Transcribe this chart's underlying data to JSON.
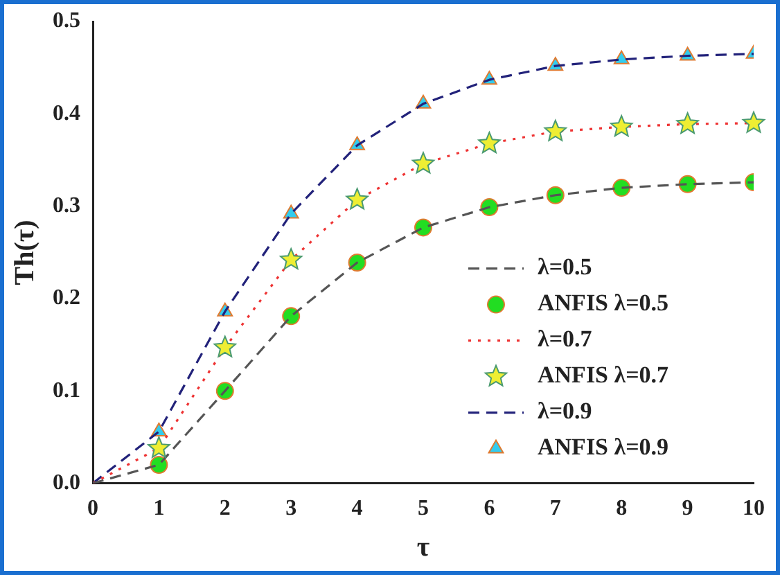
{
  "chart_data": {
    "type": "line",
    "xlabel": "τ",
    "ylabel": "Th(τ)",
    "x": [
      0,
      1,
      2,
      3,
      4,
      5,
      6,
      7,
      8,
      9,
      10
    ],
    "series": [
      {
        "name": "λ=0.5",
        "type": "line",
        "color": "#555555",
        "line_style": "dashed",
        "marker": "none",
        "values": [
          0,
          0.02,
          0.1,
          0.181,
          0.239,
          0.277,
          0.299,
          0.312,
          0.32,
          0.324,
          0.326
        ]
      },
      {
        "name": "ANFIS λ=0.5",
        "type": "scatter",
        "color": "#22dd22",
        "marker": "circle",
        "x": [
          1,
          2,
          3,
          4,
          5,
          6,
          7,
          8,
          9,
          10
        ],
        "values": [
          0.02,
          0.1,
          0.181,
          0.239,
          0.277,
          0.299,
          0.312,
          0.32,
          0.324,
          0.326
        ]
      },
      {
        "name": "λ=0.7",
        "type": "line",
        "color": "#ee3333",
        "line_style": "dotted",
        "marker": "none",
        "values": [
          0,
          0.038,
          0.147,
          0.242,
          0.307,
          0.346,
          0.368,
          0.381,
          0.386,
          0.389,
          0.39
        ]
      },
      {
        "name": "ANFIS λ=0.7",
        "type": "scatter",
        "color": "#eeee33",
        "marker": "star",
        "x": [
          1,
          2,
          3,
          4,
          5,
          6,
          7,
          8,
          9,
          10
        ],
        "values": [
          0.038,
          0.147,
          0.242,
          0.307,
          0.346,
          0.368,
          0.381,
          0.386,
          0.389,
          0.39
        ]
      },
      {
        "name": "λ=0.9",
        "type": "line",
        "color": "#22227a",
        "line_style": "dashed",
        "marker": "none",
        "values": [
          0,
          0.056,
          0.186,
          0.292,
          0.366,
          0.411,
          0.437,
          0.452,
          0.459,
          0.463,
          0.465
        ]
      },
      {
        "name": "ANFIS λ=0.9",
        "type": "scatter",
        "color": "#33ccee",
        "marker": "triangle",
        "x": [
          1,
          2,
          3,
          4,
          5,
          6,
          7,
          8,
          9,
          10
        ],
        "values": [
          0.056,
          0.186,
          0.292,
          0.366,
          0.411,
          0.437,
          0.452,
          0.459,
          0.463,
          0.465
        ]
      }
    ],
    "xlim": [
      0,
      10
    ],
    "xticks": [
      0,
      1,
      2,
      3,
      4,
      5,
      6,
      7,
      8,
      9,
      10
    ],
    "ylim": [
      0,
      0.5
    ],
    "yticks": [
      {
        "value": 0,
        "label": "0.0"
      },
      {
        "value": 0.1,
        "label": "0.1"
      },
      {
        "value": 0.2,
        "label": "0.2"
      },
      {
        "value": 0.3,
        "label": "0.3"
      },
      {
        "value": 0.4,
        "label": "0.4"
      },
      {
        "value": 0.5,
        "label": "0.5"
      }
    ],
    "grid": false,
    "legend": "bottom right"
  }
}
